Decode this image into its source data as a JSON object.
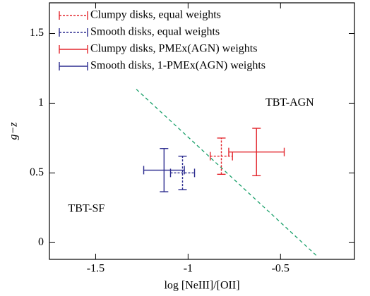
{
  "chart_data": {
    "type": "errorbar",
    "xlabel": "log [NeIII]/[OII]",
    "ylabel": "g−z",
    "xlim": [
      -1.75,
      -0.1
    ],
    "ylim": [
      -0.12,
      1.72
    ],
    "xticks": [
      -1.5,
      -1.0,
      -0.5
    ],
    "yticks": [
      0.0,
      0.5,
      1.0,
      1.5
    ],
    "legend": "upper left",
    "series": [
      {
        "name": "Clumpy disks, equal weights",
        "color": "#e3262d",
        "linestyle": "dotted",
        "x": [
          -0.82
        ],
        "values": [
          0.62
        ],
        "xerr": [
          0.06
        ],
        "yerr": [
          0.13
        ]
      },
      {
        "name": "Smooth disks, equal weights",
        "color": "#2b2b8f",
        "linestyle": "dotted",
        "x": [
          -1.03
        ],
        "values": [
          0.5
        ],
        "xerr": [
          0.065
        ],
        "yerr": [
          0.12
        ]
      },
      {
        "name": "Clumpy disks, PMEx(AGN) weights",
        "color": "#e3262d",
        "linestyle": "solid",
        "x": [
          -0.63
        ],
        "values": [
          0.65
        ],
        "xerr": [
          0.15
        ],
        "yerr": [
          0.17
        ]
      },
      {
        "name": "Smooth disks, 1-PMEx(AGN) weights",
        "color": "#2b2b8f",
        "linestyle": "solid",
        "x": [
          -1.13
        ],
        "values": [
          0.52
        ],
        "xerr": [
          0.11
        ],
        "yerr": [
          0.155
        ]
      }
    ],
    "reference_line": {
      "x": [
        -1.28,
        -0.3
      ],
      "values": [
        1.1,
        -0.1
      ],
      "color": "#1aa06a"
    },
    "annotations": [
      {
        "text": "TBT-AGN",
        "x": -0.45,
        "y": 1.0
      },
      {
        "text": "TBT-SF",
        "x": -1.55,
        "y": 0.24
      }
    ]
  }
}
